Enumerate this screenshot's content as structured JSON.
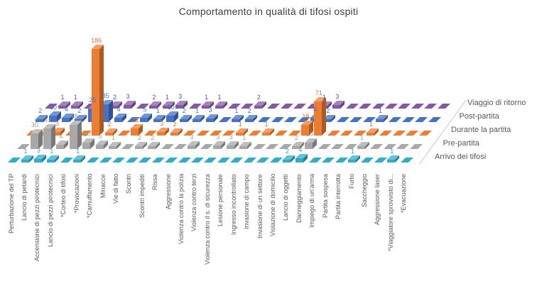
{
  "title": "Comportamento in qualità di tifosi ospiti",
  "chart_data": {
    "type": "bar",
    "variant": "3d-column",
    "title": "Comportamento in qualità di tifosi ospiti",
    "grid": false,
    "value_axis_visible": false,
    "legend_position": "right-depth-axis",
    "categories": [
      "Perturbazione del TP",
      "Lancio di petardi",
      "Accensione di pezzi pirotecnici",
      "Lancio di pezzi pirotecnici",
      "*Corteo di tifosi",
      "*Provocazioni",
      "*Camuffamento",
      "Minacce",
      "Vie di fatto",
      "Scontri",
      "Scontri impediti",
      "Rissa",
      "Aggressione",
      "Violenza contro la polizia",
      "Violenza contro terzi",
      "Violenza contro il s. di sicurezza",
      "Lesione personale",
      "Ingresso incontrollato",
      "Invasione di campo",
      "Invasione di un settore",
      "Violazione di domicilio",
      "Lancio di oggetti",
      "Danneggiamento",
      "Impiego di un'arma",
      "Partita sospesa",
      "Partita interrotta",
      "Furto",
      "Saccheggio",
      "Aggressione laser",
      "*Viaggiatore sprovvisto di...",
      "*Evacuazione"
    ],
    "series": [
      {
        "name": "Arrivo dei tifosi",
        "color": "#2FAECB",
        "label_color": "#35A9C4",
        "values": [
          0,
          1,
          3,
          1,
          0,
          1,
          0,
          0,
          0,
          0,
          0,
          0,
          0,
          0,
          0,
          0,
          0,
          0,
          0,
          0,
          0,
          2,
          4,
          0,
          0,
          0,
          1,
          0,
          0,
          1,
          0
        ]
      },
      {
        "name": "Pre-partita",
        "color": "#A8A8A8",
        "label_color": "#9C9C9C",
        "values": [
          0,
          30,
          41,
          4,
          48,
          10,
          5,
          1,
          0,
          2,
          2,
          0,
          0,
          3,
          0,
          3,
          3,
          1,
          0,
          0,
          0,
          2,
          10,
          0,
          0,
          0,
          1,
          0,
          0,
          0,
          0
        ]
      },
      {
        "name": "Durante la partita",
        "color": "#ED7D31",
        "label_color": "#E8703A",
        "values": [
          0,
          0,
          3,
          0,
          0,
          186,
          2,
          0,
          11,
          0,
          3,
          2,
          0,
          0,
          0,
          0,
          1,
          0,
          1,
          0,
          0,
          18,
          71,
          0,
          0,
          0,
          1,
          0,
          0,
          0,
          0
        ]
      },
      {
        "name": "Post-partita",
        "color": "#4472C4",
        "label_color": "#4472C4",
        "values": [
          2,
          10,
          4,
          2,
          25,
          35,
          4,
          0,
          5,
          1,
          10,
          2,
          1,
          3,
          0,
          1,
          2,
          0,
          0,
          0,
          0,
          4,
          2,
          0,
          0,
          0,
          1,
          0,
          0,
          0,
          0
        ]
      },
      {
        "name": "Viaggio di ritorno",
        "color": "#8659A8",
        "label_color": "#7545A0",
        "values": [
          0,
          1,
          1,
          0,
          0,
          2,
          3,
          0,
          2,
          1,
          3,
          0,
          1,
          1,
          0,
          0,
          2,
          0,
          0,
          0,
          0,
          1,
          3,
          0,
          0,
          0,
          0,
          0,
          0,
          0,
          0
        ]
      }
    ]
  }
}
